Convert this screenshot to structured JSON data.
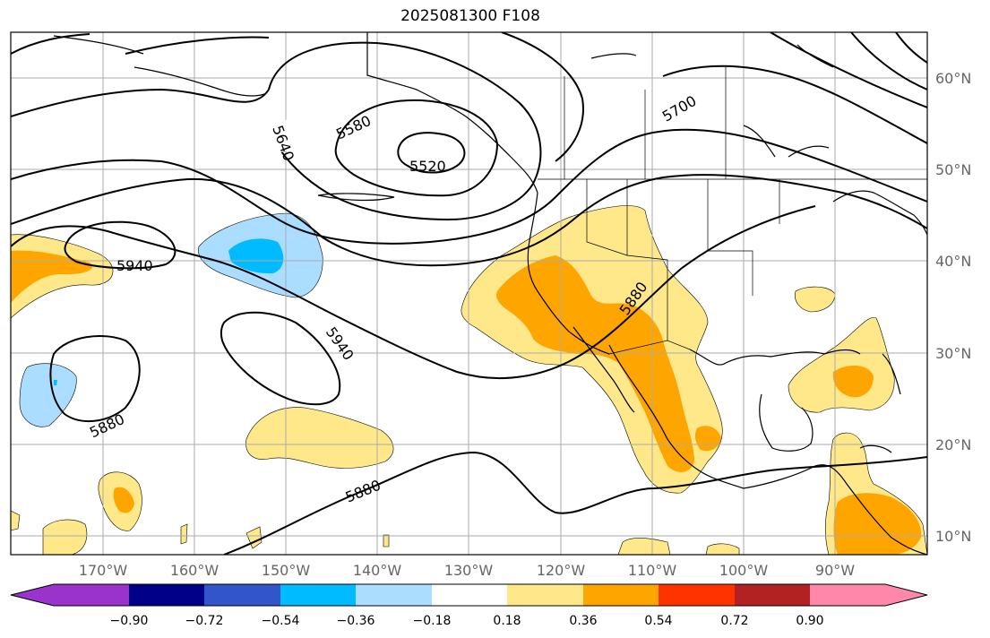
{
  "title": "2025081300 F108",
  "lat_labels": [
    "60°N",
    "50°N",
    "40°N",
    "30°N",
    "20°N",
    "10°N"
  ],
  "lon_labels": [
    "170°W",
    "160°W",
    "150°W",
    "140°W",
    "130°W",
    "120°W",
    "110°W",
    "100°W",
    "90°W"
  ],
  "contour_labels": [
    "5640",
    "5580",
    "5520",
    "5700",
    "5940",
    "5880",
    "5940",
    "5880",
    "5880"
  ],
  "colorbar": {
    "ticks": [
      "−0.90",
      "−0.72",
      "−0.54",
      "−0.36",
      "−0.18",
      "0.18",
      "0.36",
      "0.54",
      "0.72",
      "0.90"
    ],
    "colors": [
      "#9933cc",
      "#000088",
      "#3355cc",
      "#00bbff",
      "#aaddff",
      "#ffffff",
      "#ffe88a",
      "#ffa500",
      "#ff3300",
      "#b22222",
      "#ff88aa"
    ]
  },
  "colors": {
    "land": "#000000",
    "grid": "#aaaaaa",
    "light_yellow": "#ffe88a",
    "orange": "#ffa500",
    "light_blue": "#aaddff",
    "cyan": "#00bbff"
  }
}
